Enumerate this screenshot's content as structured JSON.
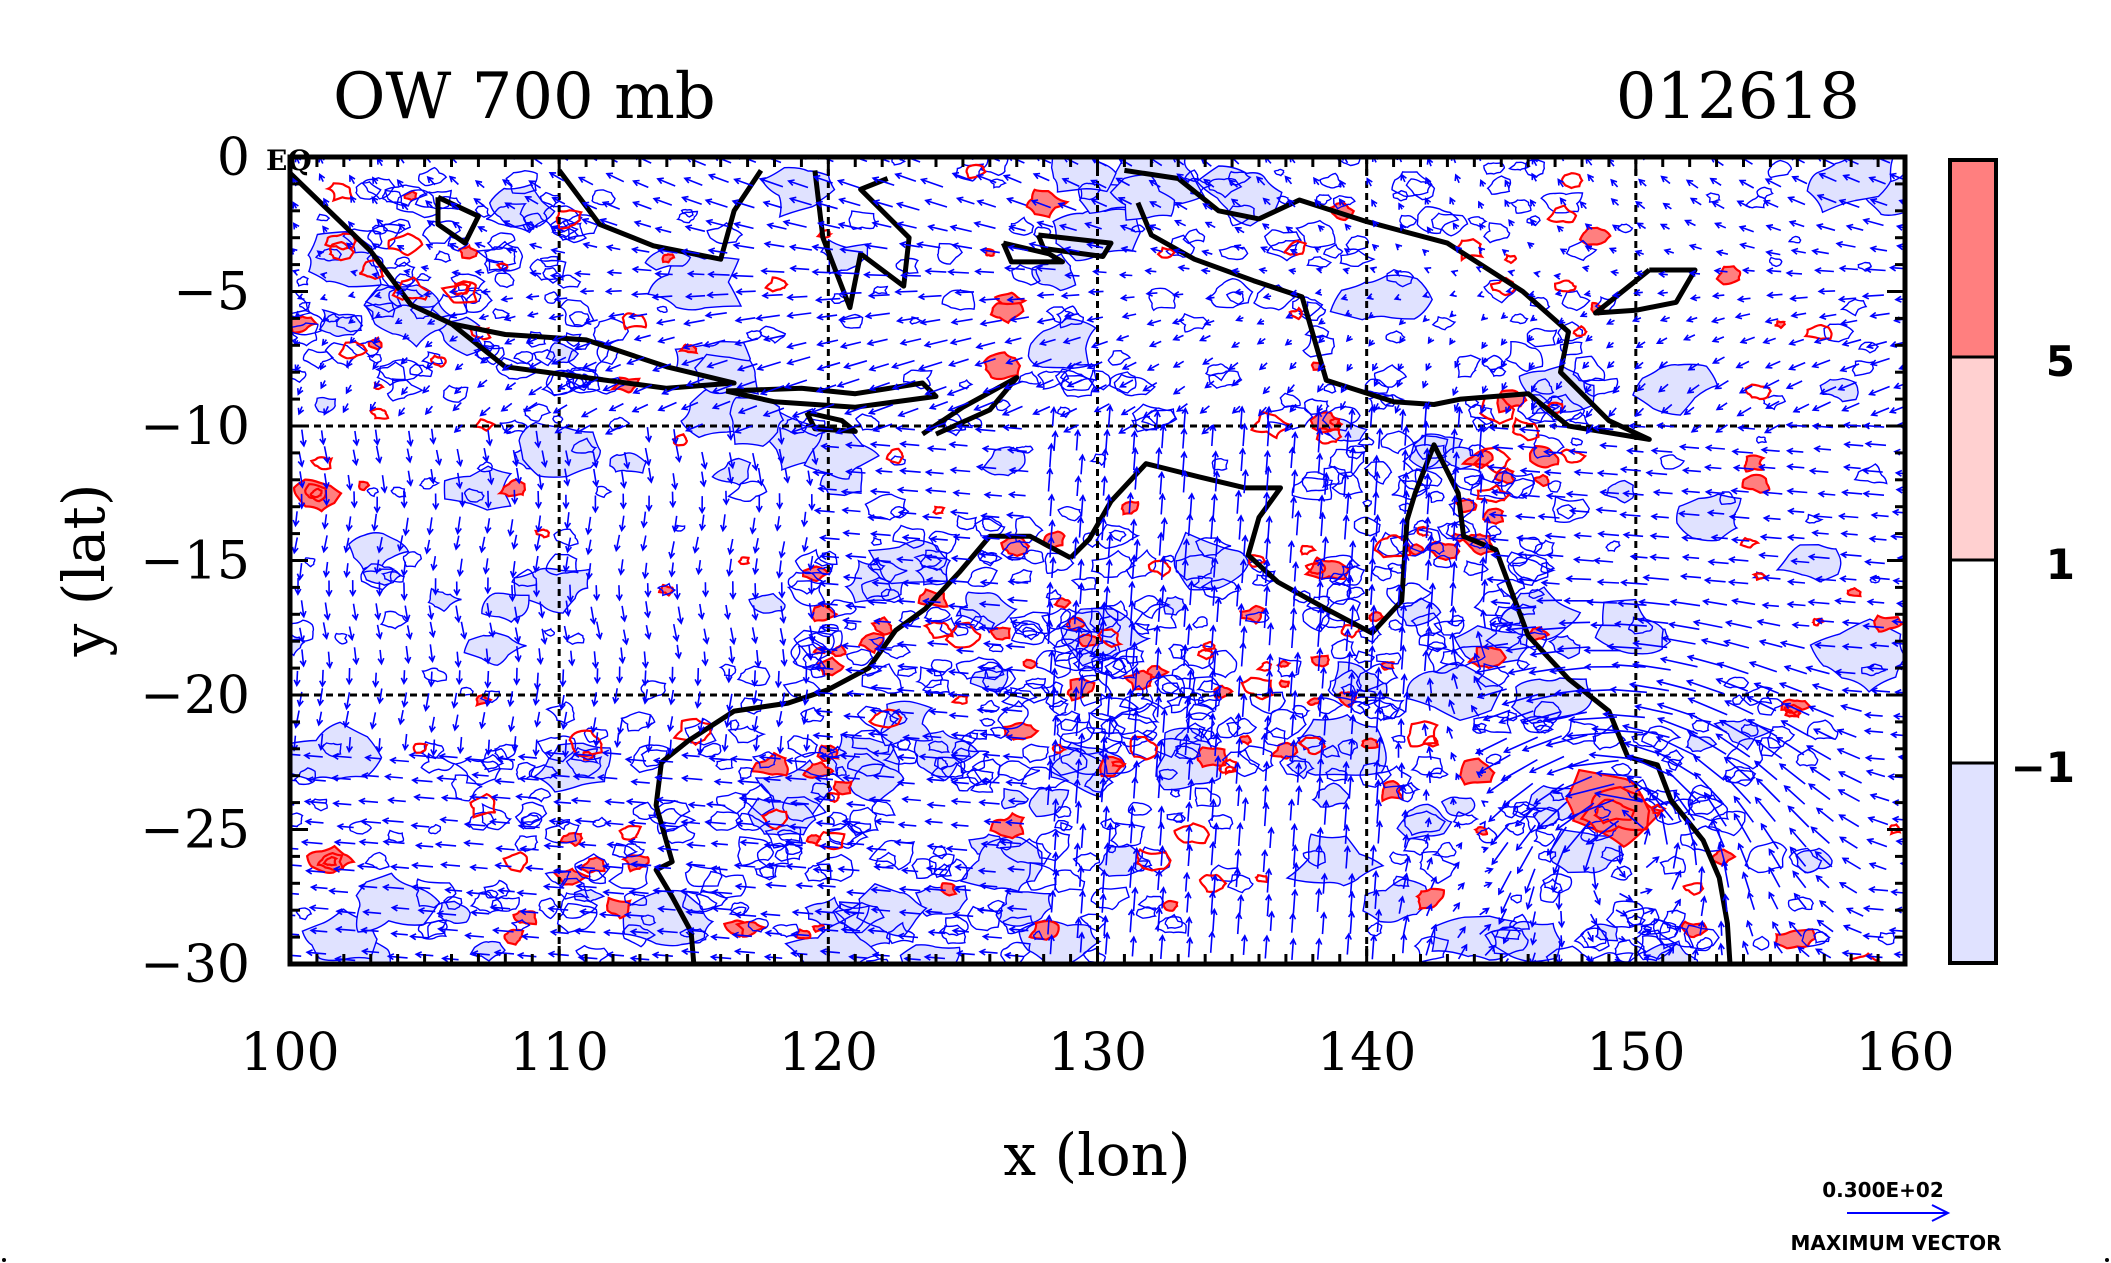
{
  "title_left": "OW 700 mb",
  "title_right": "012618",
  "corner_label": "EQ",
  "xlabel": "x (lon)",
  "ylabel": "y (lat)",
  "x_ticks": [
    "100",
    "110",
    "120",
    "130",
    "140",
    "150",
    "160"
  ],
  "y_ticks": [
    "0",
    "−5",
    "−10",
    "−15",
    "−20",
    "−25",
    "−30"
  ],
  "colorbar": {
    "labels": [
      "5",
      "1",
      "−1"
    ],
    "colors": [
      "#ff7f7f",
      "#ffd0d0",
      "#ffffff",
      "#e0e2ff"
    ]
  },
  "vector_key": {
    "value_label": "0.300E+02",
    "caption": "MAXIMUM VECTOR"
  },
  "colors": {
    "positive_contour": "#ff0000",
    "negative_contour": "#0000ff",
    "vector": "#0000ff",
    "coast": "#000000",
    "positive_fill": "#ff7f7f",
    "negative_fill": "#e0e2ff"
  },
  "map": {
    "lon_range": [
      100,
      160
    ],
    "lat_range": [
      -30,
      0
    ],
    "grid_lon": [
      110,
      120,
      130,
      140,
      150
    ],
    "grid_lat": [
      -10,
      -20
    ],
    "highlight_features": [
      {
        "lon": 149.2,
        "lat": -24.3,
        "type": "positive"
      },
      {
        "lon": 101.0,
        "lat": -12.5,
        "type": "positive"
      },
      {
        "lon": 101.5,
        "lat": -26.2,
        "type": "positive"
      }
    ]
  }
}
